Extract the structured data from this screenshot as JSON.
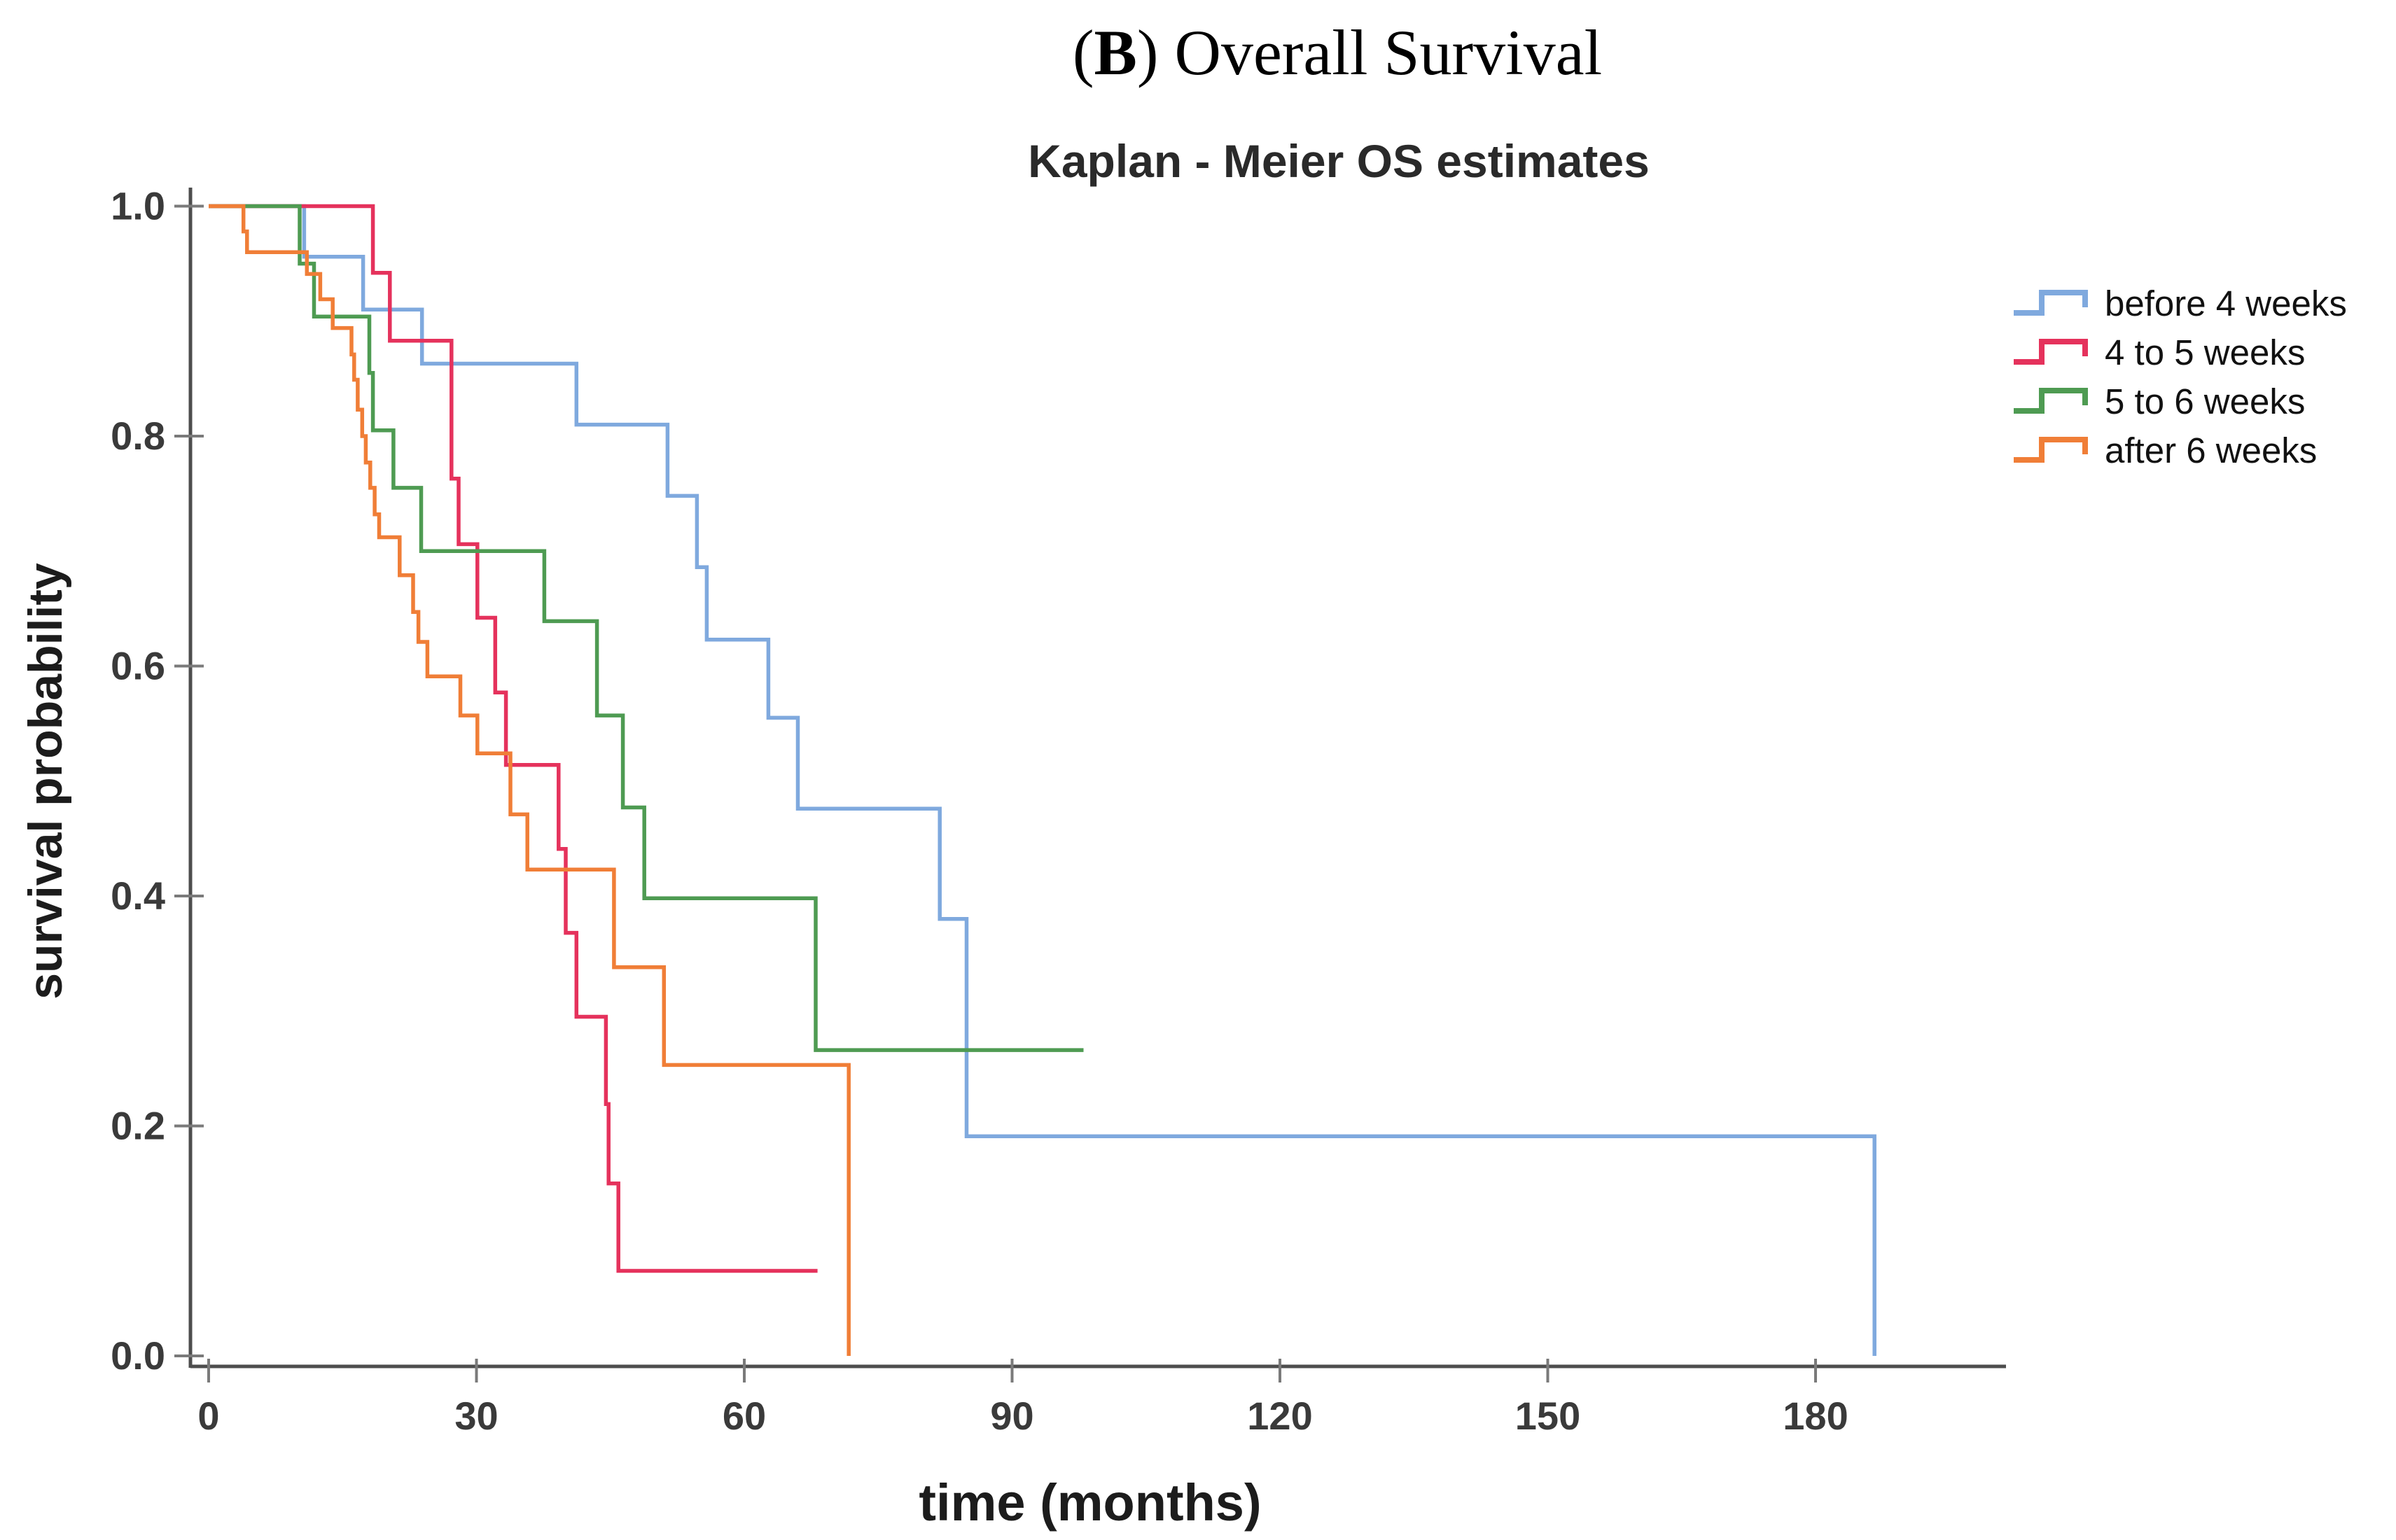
{
  "header": {
    "title_prefix": "(",
    "title_emph": "B",
    "title_suffix": ") Overall Survival"
  },
  "chart_data": {
    "type": "line",
    "subtype": "kaplan-meier-step",
    "title": "Kaplan - Meier OS estimates",
    "xlabel": "time (months)",
    "ylabel": "survival probability",
    "xlim": [
      -2,
      202
    ],
    "ylim": [
      0.0,
      1.0
    ],
    "grid": false,
    "legend_position": "upper right",
    "xticks": [
      0,
      30,
      60,
      90,
      120,
      150,
      180
    ],
    "yticks": [
      0.0,
      0.2,
      0.4,
      0.6,
      0.8,
      1.0
    ],
    "tick_labels": {
      "x": [
        "0",
        "30",
        "60",
        "90",
        "120",
        "150",
        "180"
      ],
      "y": [
        "0.0",
        "0.2",
        "0.4",
        "0.6",
        "0.8",
        "1.0"
      ]
    },
    "colors": {
      "axis": "#4d4d4d",
      "tick": "#7a7a7a",
      "blue": "#7FA9DE",
      "red": "#E5325C",
      "green": "#4E9B52",
      "orange": "#F07E37"
    },
    "series": [
      {
        "name": "before 4 weeks",
        "color": "#7FA9DE",
        "points": [
          [
            0,
            1.0
          ],
          [
            10.7,
            0.956
          ],
          [
            17.3,
            0.91
          ],
          [
            23.9,
            0.863
          ],
          [
            41.2,
            0.81
          ],
          [
            51.4,
            0.748
          ],
          [
            54.7,
            0.686
          ],
          [
            55.8,
            0.623
          ],
          [
            62.7,
            0.555
          ],
          [
            66.0,
            0.476
          ],
          [
            81.9,
            0.38
          ],
          [
            84.9,
            0.191
          ],
          [
            186.6,
            0.0
          ]
        ],
        "end_time": 186.6
      },
      {
        "name": "4 to 5 weeks",
        "color": "#E5325C",
        "points": [
          [
            0,
            1.0
          ],
          [
            18.4,
            0.942
          ],
          [
            20.3,
            0.883
          ],
          [
            27.2,
            0.763
          ],
          [
            28.0,
            0.706
          ],
          [
            30.1,
            0.642
          ],
          [
            32.1,
            0.577
          ],
          [
            33.3,
            0.514
          ],
          [
            39.2,
            0.441
          ],
          [
            40.0,
            0.368
          ],
          [
            41.2,
            0.295
          ],
          [
            44.5,
            0.219
          ],
          [
            44.8,
            0.15
          ],
          [
            45.9,
            0.074
          ]
        ],
        "end_time": 68.2
      },
      {
        "name": "5 to 6 weeks",
        "color": "#4E9B52",
        "points": [
          [
            0,
            1.0
          ],
          [
            10.2,
            0.95
          ],
          [
            11.8,
            0.904
          ],
          [
            18.0,
            0.855
          ],
          [
            18.4,
            0.805
          ],
          [
            20.7,
            0.755
          ],
          [
            23.8,
            0.7
          ],
          [
            37.6,
            0.639
          ],
          [
            43.5,
            0.557
          ],
          [
            46.4,
            0.477
          ],
          [
            48.8,
            0.398
          ],
          [
            68.0,
            0.266
          ]
        ],
        "end_time": 98.0
      },
      {
        "name": "after 6 weeks",
        "color": "#F07E37",
        "points": [
          [
            0,
            1.0
          ],
          [
            3.9,
            0.978
          ],
          [
            4.3,
            0.96
          ],
          [
            11.0,
            0.941
          ],
          [
            12.5,
            0.919
          ],
          [
            13.9,
            0.894
          ],
          [
            16.0,
            0.871
          ],
          [
            16.3,
            0.849
          ],
          [
            16.7,
            0.823
          ],
          [
            17.2,
            0.8
          ],
          [
            17.6,
            0.777
          ],
          [
            18.1,
            0.755
          ],
          [
            18.6,
            0.732
          ],
          [
            19.1,
            0.712
          ],
          [
            21.4,
            0.679
          ],
          [
            22.9,
            0.647
          ],
          [
            23.5,
            0.621
          ],
          [
            24.5,
            0.591
          ],
          [
            28.2,
            0.557
          ],
          [
            30.1,
            0.524
          ],
          [
            33.8,
            0.471
          ],
          [
            35.7,
            0.423
          ],
          [
            45.4,
            0.338
          ],
          [
            51.0,
            0.253
          ],
          [
            71.7,
            0.0
          ]
        ],
        "end_time": 71.7
      }
    ]
  }
}
